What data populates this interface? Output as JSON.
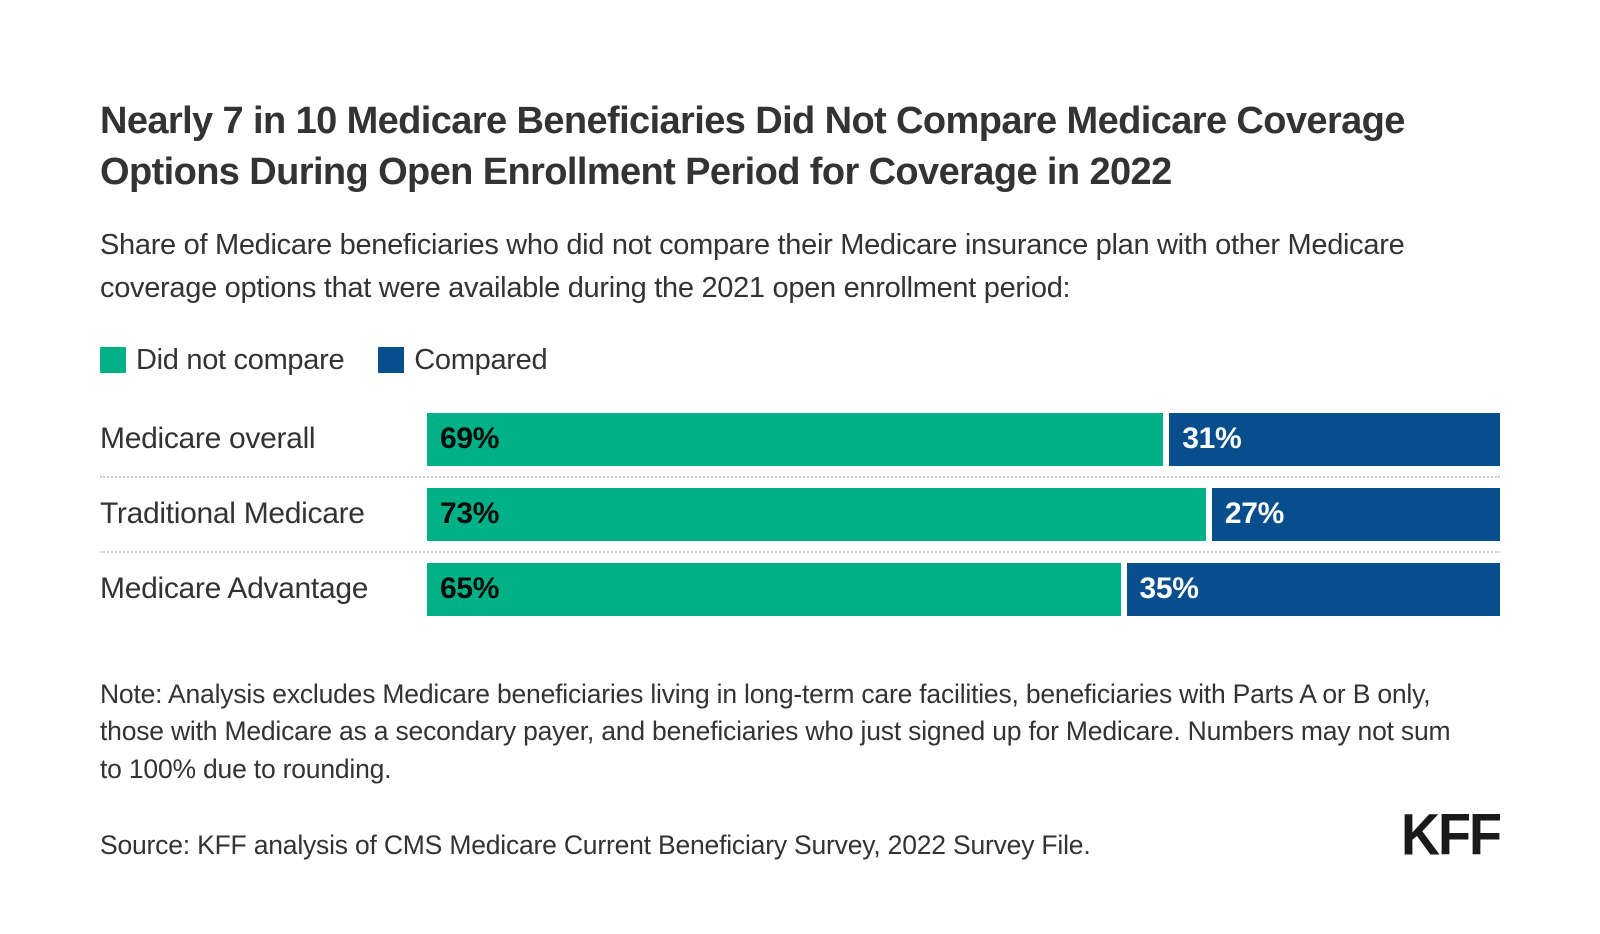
{
  "colors": {
    "background": "#ffffff",
    "did_not_compare_green": "#00B188",
    "compared_blue": "#074E8C",
    "text": "#333333",
    "separator": "#cccccc",
    "logo": "#1a1a1a"
  },
  "chart_data": {
    "type": "bar",
    "orientation": "horizontal",
    "stacked": true,
    "grid": false,
    "legend_position": "top-left",
    "value_label_position": "inside-start",
    "xlim": [
      0,
      100
    ],
    "title": "Nearly 7 in 10 Medicare Beneficiaries Did Not Compare Medicare Coverage Options During Open Enrollment Period for Coverage in 2022",
    "subtitle": "Share of Medicare beneficiaries who did not compare their Medicare insurance plan with other Medicare coverage options that were available during the 2021 open enrollment period:",
    "categories": [
      "Medicare overall",
      "Traditional Medicare",
      "Medicare Advantage"
    ],
    "series": [
      {
        "name": "Did not compare",
        "color": "#00B188",
        "values": [
          69,
          73,
          65
        ]
      },
      {
        "name": "Compared",
        "color": "#074E8C",
        "values": [
          31,
          27,
          35
        ]
      }
    ],
    "display_labels": [
      [
        "69%",
        "31%"
      ],
      [
        "73%",
        "27%"
      ],
      [
        "65%",
        "35%"
      ]
    ]
  },
  "footer": {
    "note": "Note: Analysis excludes Medicare beneficiaries living in long-term care facilities, beneficiaries with Parts A or B only, those with Medicare as a secondary payer, and beneficiaries who just signed up for Medicare. Numbers may not sum to 100% due to rounding.",
    "source": "Source: KFF analysis of CMS Medicare Current Beneficiary Survey, 2022 Survey File.",
    "logo_text": "KFF"
  }
}
